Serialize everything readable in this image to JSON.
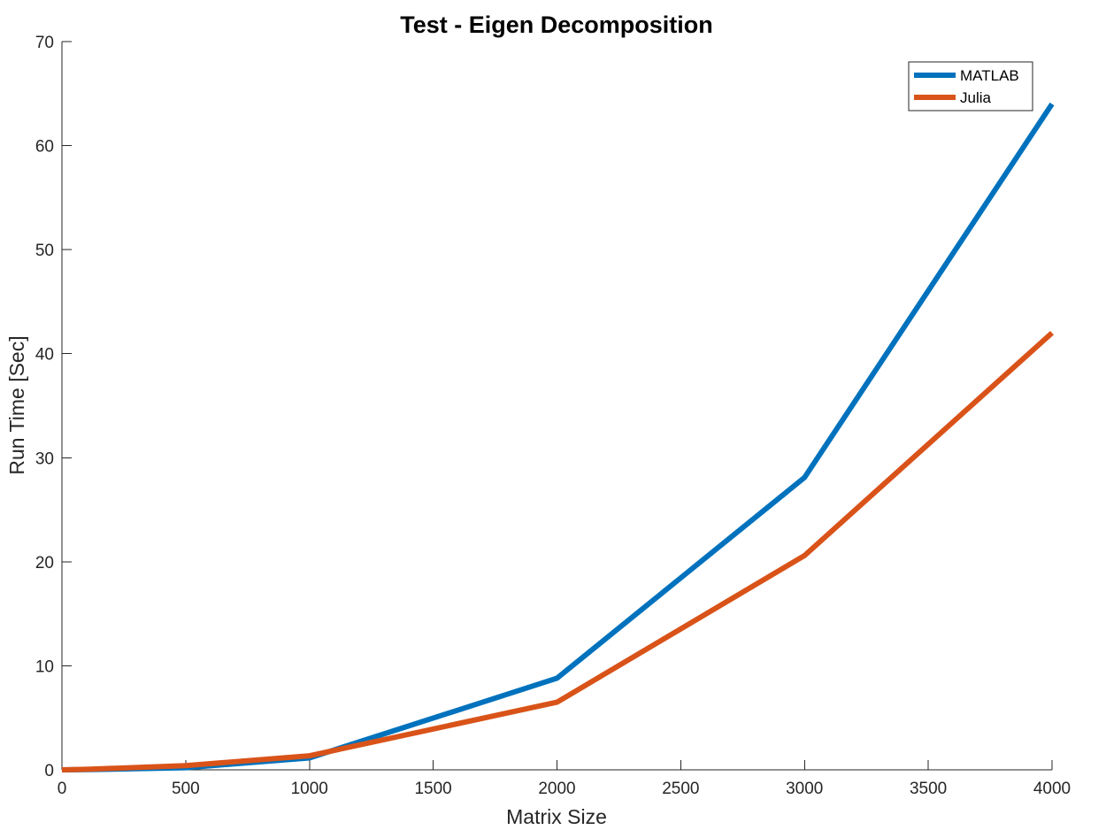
{
  "chart_data": {
    "type": "line",
    "title": "Test - Eigen Decomposition",
    "xlabel": "Matrix Size",
    "ylabel": "Run Time  [Sec]",
    "xlim": [
      0,
      4000
    ],
    "ylim": [
      0,
      70
    ],
    "xticks": [
      0,
      500,
      1000,
      1500,
      2000,
      2500,
      3000,
      3500,
      4000
    ],
    "yticks": [
      0,
      10,
      20,
      30,
      40,
      50,
      60,
      70
    ],
    "xtick_labels": [
      "0",
      "500",
      "1000",
      "1500",
      "2000",
      "2500",
      "3000",
      "3500",
      "4000"
    ],
    "ytick_labels": [
      "0",
      "10",
      "20",
      "30",
      "40",
      "50",
      "60",
      "70"
    ],
    "grid": false,
    "legend_position": "top-right",
    "x": [
      0,
      100,
      500,
      1000,
      2000,
      3000,
      4000
    ],
    "series": [
      {
        "name": "MATLAB",
        "color": "#0072BD",
        "values": [
          0.0,
          0.02,
          0.2,
          1.15,
          8.8,
          28.1,
          64.0
        ]
      },
      {
        "name": "Julia",
        "color": "#D95319",
        "values": [
          0.0,
          0.05,
          0.4,
          1.35,
          6.5,
          20.6,
          42.0
        ]
      }
    ]
  }
}
